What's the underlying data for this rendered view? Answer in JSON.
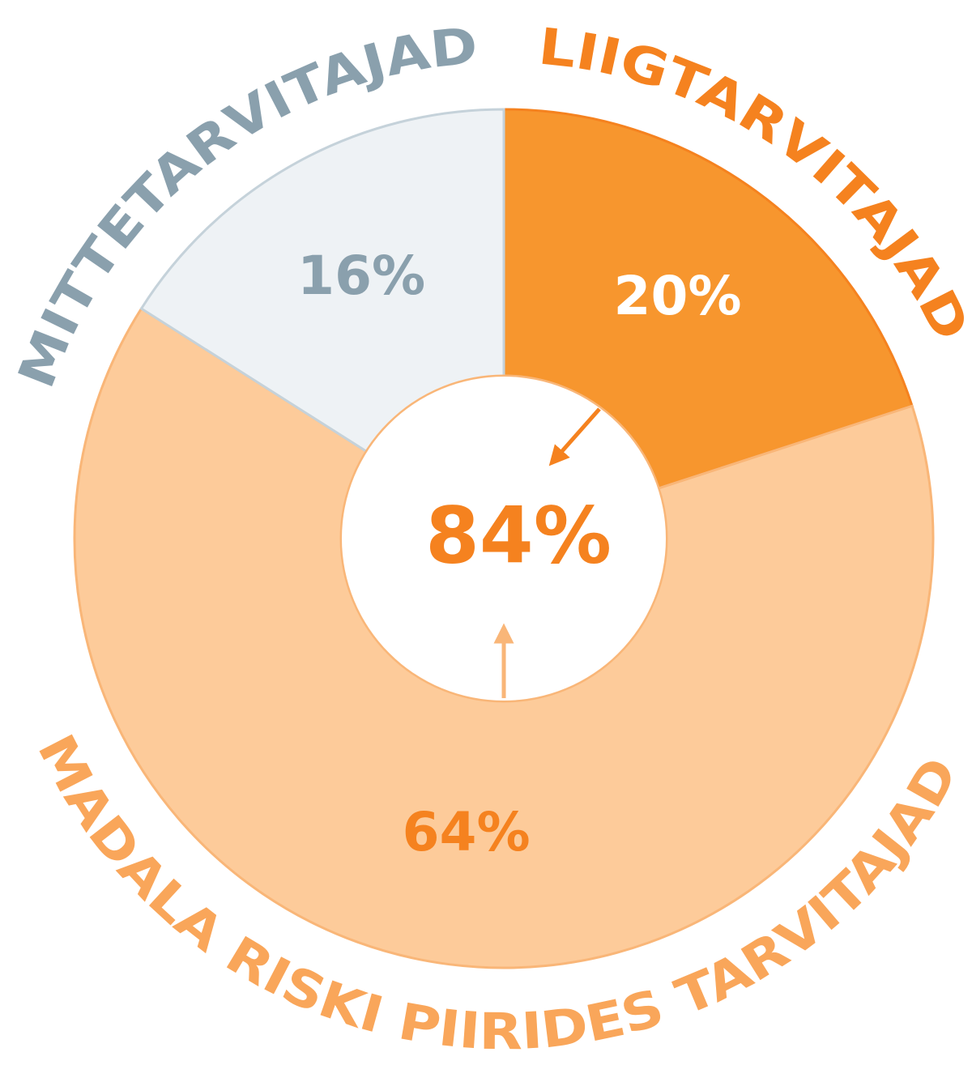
{
  "chart_data": {
    "type": "donut",
    "categories": [
      "LIIGTARVITAJAD",
      "MADALA RISKI PIIRIDES TARVITAJAD",
      "MITTETARVITAJAD"
    ],
    "values": [
      20,
      64,
      16
    ],
    "value_labels": [
      "20%",
      "64%",
      "16%"
    ],
    "colors": [
      "#f7962e",
      "#fdcb9a",
      "#eef2f5"
    ],
    "center_label": "84%"
  }
}
